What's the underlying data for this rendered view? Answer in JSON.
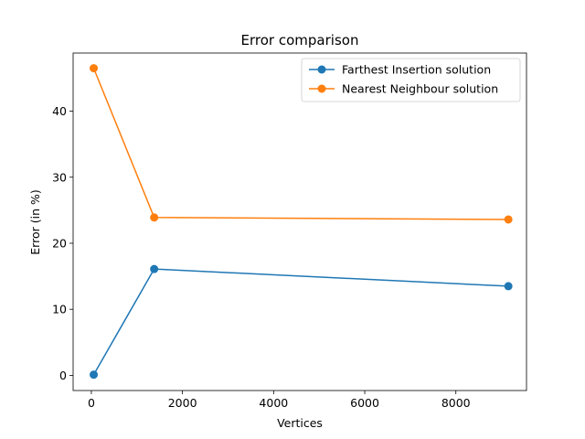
{
  "chart_data": {
    "type": "line",
    "title": "Error comparison",
    "xlabel": "Vertices",
    "ylabel": "Error (in %)",
    "xlim": [
      -400,
      9550
    ],
    "ylim": [
      -2.3,
      48.8
    ],
    "xticks": [
      0,
      2000,
      4000,
      6000,
      8000
    ],
    "xtick_labels": [
      "0",
      "2000",
      "4000",
      "6000",
      "8000"
    ],
    "yticks": [
      0,
      10,
      20,
      30,
      40
    ],
    "ytick_labels": [
      "0",
      "10",
      "20",
      "30",
      "40"
    ],
    "grid": false,
    "legend_position": "upper right",
    "series": [
      {
        "name": "Farthest Insertion solution",
        "color": "#1f77b4",
        "marker": "circle",
        "x": [
          52,
          1379,
          9152
        ],
        "y": [
          0.1,
          16.1,
          13.5
        ]
      },
      {
        "name": "Nearest Neighbour solution",
        "color": "#ff7f0e",
        "marker": "circle",
        "x": [
          52,
          1379,
          9152
        ],
        "y": [
          46.5,
          23.9,
          23.6
        ]
      }
    ]
  }
}
